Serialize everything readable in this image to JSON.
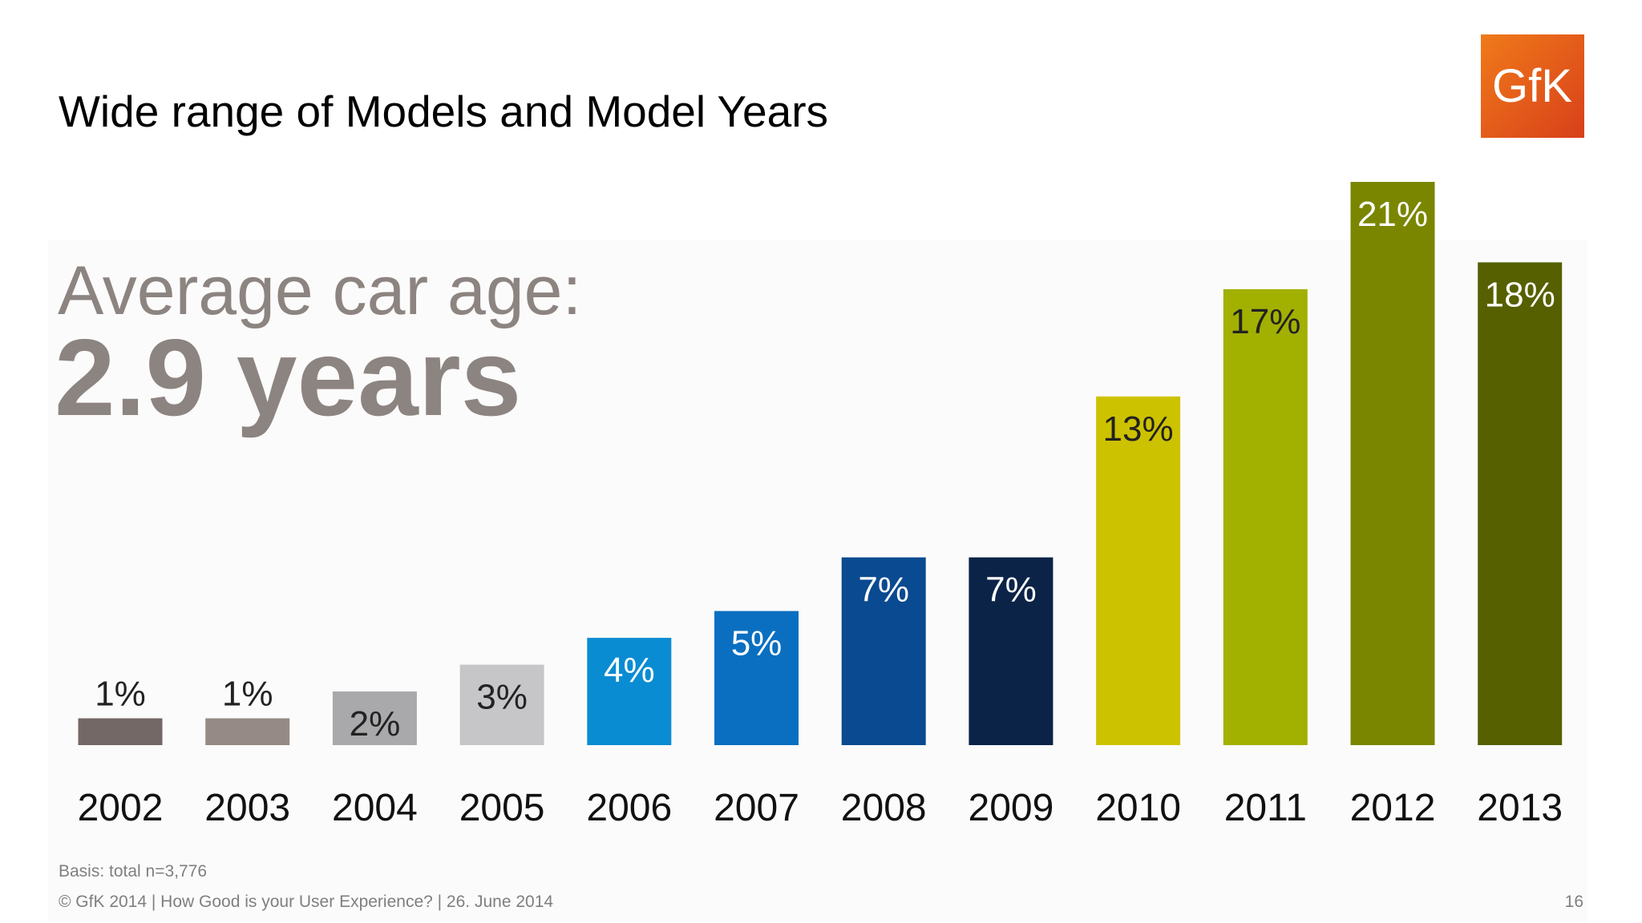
{
  "title": "Wide range of Models and Model Years",
  "logo": "GfK",
  "highlight": {
    "label": "Average car age:",
    "value": "2.9 years"
  },
  "basis": "Basis: total n=3,776",
  "footer": {
    "text": "© GfK 2014 | How Good is your User Experience? | 26. June 2014",
    "page": "16"
  },
  "chart_data": {
    "type": "bar",
    "categories": [
      "2002",
      "2003",
      "2004",
      "2005",
      "2006",
      "2007",
      "2008",
      "2009",
      "2010",
      "2011",
      "2012",
      "2013"
    ],
    "values": [
      1,
      1,
      2,
      3,
      4,
      5,
      7,
      7,
      13,
      17,
      21,
      18
    ],
    "value_labels": [
      "1%",
      "1%",
      "2%",
      "3%",
      "4%",
      "5%",
      "7%",
      "7%",
      "13%",
      "17%",
      "21%",
      "18%"
    ],
    "colors": [
      "#736866",
      "#958a85",
      "#a9a8aa",
      "#c6c5c8",
      "#0a8cd2",
      "#0a6fc0",
      "#0a4a90",
      "#0b2347",
      "#cdc200",
      "#a2b000",
      "#7a8600",
      "#566000"
    ]
  }
}
